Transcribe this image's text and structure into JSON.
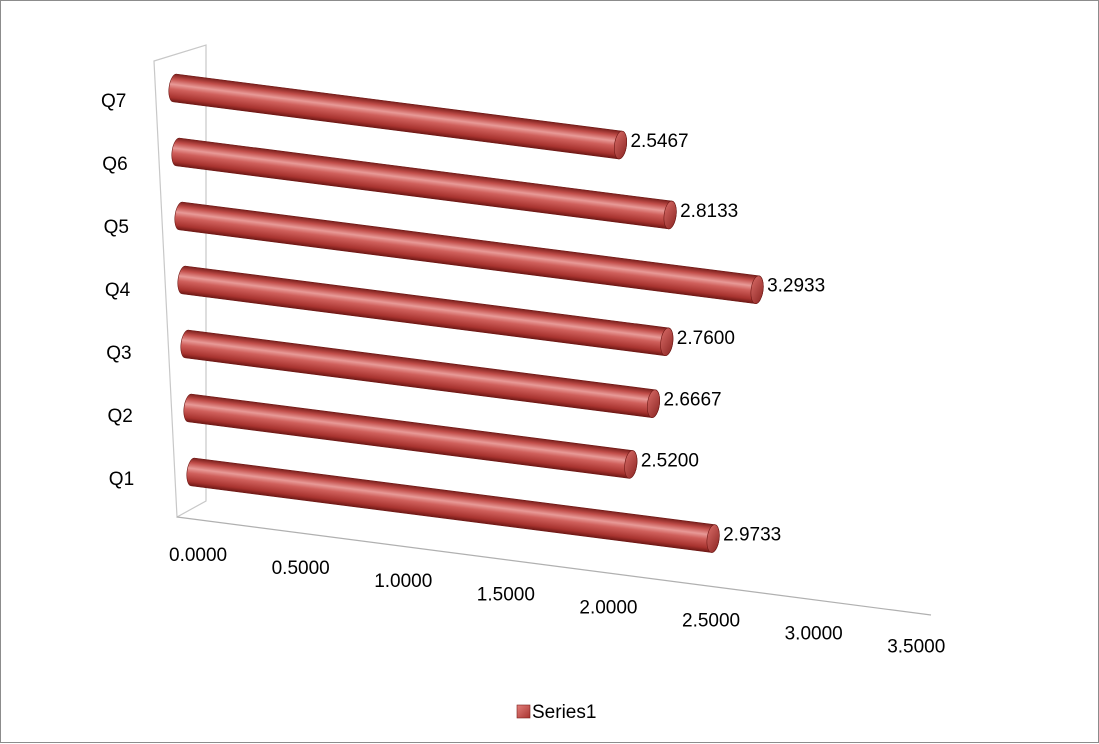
{
  "chart_data": {
    "type": "bar",
    "orientation": "horizontal",
    "style": "3d-cylinder",
    "title": "",
    "xlabel": "",
    "ylabel": "",
    "categories": [
      "Q1",
      "Q2",
      "Q3",
      "Q4",
      "Q5",
      "Q6",
      "Q7"
    ],
    "series": [
      {
        "name": "Series1",
        "values": [
          2.9733,
          2.52,
          2.6667,
          2.76,
          3.2933,
          2.8133,
          2.5467
        ],
        "data_labels": [
          "2.9733",
          "2.5200",
          "2.6667",
          "2.7600",
          "3.2933",
          "2.8133",
          "2.5467"
        ],
        "color": "#c0504d"
      }
    ],
    "x_ticks": [
      "0.0000",
      "0.5000",
      "1.0000",
      "1.5000",
      "2.0000",
      "2.5000",
      "3.0000",
      "3.5000"
    ],
    "xlim": [
      0,
      3.5
    ],
    "grid": false,
    "legend": {
      "position": "bottom",
      "entries": [
        "Series1"
      ]
    }
  }
}
